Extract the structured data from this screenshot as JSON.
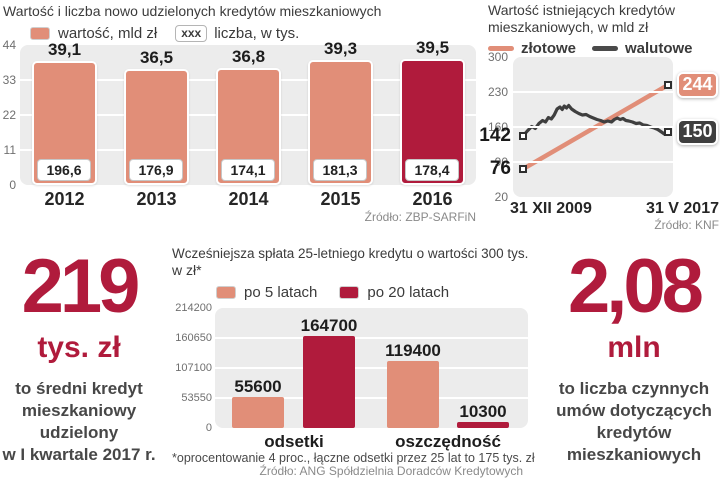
{
  "colors": {
    "salmon": "#e18e78",
    "crimson": "#b01b3c",
    "dark": "#3f3f3f",
    "plot_bg": "#ececec",
    "grid": "#ffffff",
    "tick_gray": "#6f6f6f",
    "source_gray": "#8a8a8a",
    "text_dark": "#1d1d1d"
  },
  "chart_data": [
    {
      "type": "bar",
      "title": "Wartość i liczba nowo udzielonych kredytów mieszkaniowych",
      "legend": {
        "value_label": "wartość, mld zł",
        "count_badge": "xxx",
        "count_label": "liczba, w tys."
      },
      "categories": [
        "2012",
        "2013",
        "2014",
        "2015",
        "2016"
      ],
      "values": [
        39.1,
        36.5,
        36.8,
        39.3,
        39.5
      ],
      "value_labels": [
        "39,1",
        "36,5",
        "36,8",
        "39,3",
        "39,5"
      ],
      "count_labels": [
        "196,6",
        "176,9",
        "174,1",
        "181,3",
        "178,4"
      ],
      "highlight_index": 4,
      "y_ticks": [
        44,
        33,
        22,
        11,
        0
      ],
      "ylim": [
        0,
        44
      ],
      "source": "Źródło: ZBP-SARFiN"
    },
    {
      "type": "line",
      "title": "Wartość istniejących kredytów mieszkaniowych, w mld zł",
      "x_labels": [
        "31 XII 2009",
        "31 V 2017"
      ],
      "y_ticks": [
        300,
        230,
        160,
        90,
        20
      ],
      "ylim": [
        20,
        300
      ],
      "series": [
        {
          "name": "złotowe",
          "color_key": "salmon",
          "start_label": "76",
          "end_label": "244",
          "points": [
            [
              0,
              76
            ],
            [
              1,
              244
            ]
          ]
        },
        {
          "name": "walutowe",
          "color_key": "dark",
          "start_label": "142",
          "end_label": "150",
          "points": [
            [
              0,
              142
            ],
            [
              0.03,
              152
            ],
            [
              0.06,
              161
            ],
            [
              0.085,
              157
            ],
            [
              0.11,
              167
            ],
            [
              0.135,
              173
            ],
            [
              0.155,
              170
            ],
            [
              0.175,
              179
            ],
            [
              0.195,
              176
            ],
            [
              0.215,
              184
            ],
            [
              0.235,
              196
            ],
            [
              0.255,
              200
            ],
            [
              0.27,
              195
            ],
            [
              0.285,
              202
            ],
            [
              0.3,
              198
            ],
            [
              0.315,
              203
            ],
            [
              0.335,
              196
            ],
            [
              0.36,
              191
            ],
            [
              0.385,
              187
            ],
            [
              0.41,
              184
            ],
            [
              0.435,
              185
            ],
            [
              0.46,
              181
            ],
            [
              0.485,
              178
            ],
            [
              0.51,
              175
            ],
            [
              0.535,
              173
            ],
            [
              0.56,
              170
            ],
            [
              0.585,
              172
            ],
            [
              0.61,
              170
            ],
            [
              0.63,
              175
            ],
            [
              0.65,
              178
            ],
            [
              0.67,
              175
            ],
            [
              0.69,
              177
            ],
            [
              0.71,
              173
            ],
            [
              0.73,
              172
            ],
            [
              0.755,
              170
            ],
            [
              0.78,
              167
            ],
            [
              0.805,
              168
            ],
            [
              0.83,
              164
            ],
            [
              0.855,
              163
            ],
            [
              0.88,
              160
            ],
            [
              0.905,
              158
            ],
            [
              0.93,
              155
            ],
            [
              0.955,
              150
            ],
            [
              0.975,
              146
            ],
            [
              1,
              150
            ]
          ]
        }
      ],
      "source": "Źródło: KNF"
    },
    {
      "type": "bar",
      "title_line1": "Wcześniejsza spłata 25-letniego kredytu o wartości 300 tys.",
      "title_line2": "w zł*",
      "categories": [
        "odsetki",
        "oszczędność"
      ],
      "series": [
        {
          "name": "po 5 latach",
          "color_key": "salmon",
          "values": [
            55600,
            119400
          ],
          "value_labels": [
            "55600",
            "119400"
          ]
        },
        {
          "name": "po 20 latach",
          "color_key": "crimson",
          "values": [
            164700,
            10300
          ],
          "value_labels": [
            "164700",
            "10300"
          ]
        }
      ],
      "y_ticks": [
        214200,
        160650,
        107100,
        53550,
        0
      ],
      "ylim": [
        0,
        214200
      ],
      "footnote": "*oprocentowanie 4 proc., łączne odsetki przez 25 lat to 175 tys. zł",
      "source": "Źródło: ANG Spółdzielnia Doradców Kredytowych"
    }
  ],
  "stats": [
    {
      "value": "219",
      "unit": "tys. zł",
      "desc": "to średni kredyt mieszkaniowy udzielony w I kwartale 2017 r.",
      "desc_lines": [
        "to średni kredyt",
        "mieszkaniowy",
        "udzielony",
        "w I kwartale 2017 r."
      ]
    },
    {
      "value": "2,08",
      "unit": "mln",
      "desc": "to liczba czynnych umów dotyczących kredytów mieszkaniowych",
      "desc_lines": [
        "to liczba czynnych",
        "umów dotyczących",
        "kredytów",
        "mieszkaniowych"
      ]
    }
  ]
}
